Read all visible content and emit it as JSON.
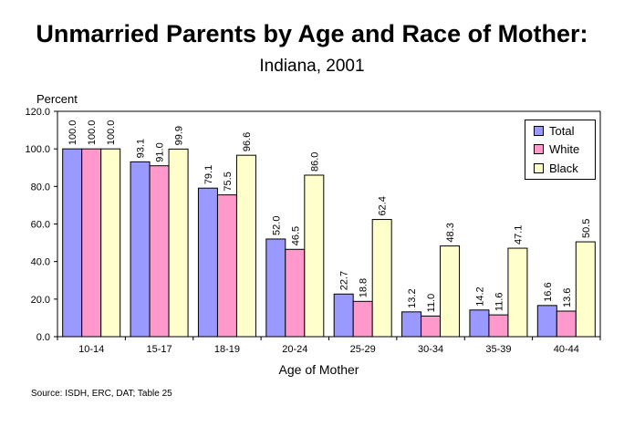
{
  "chart_data": {
    "type": "bar",
    "title": "Unmarried Parents by Age and Race of Mother:",
    "subtitle": "Indiana, 2001",
    "ylabel": "Percent",
    "xlabel": "Age of Mother",
    "ylim": [
      0,
      120
    ],
    "yticks": [
      "0.0",
      "20.0",
      "40.0",
      "60.0",
      "80.0",
      "100.0",
      "120.0"
    ],
    "categories": [
      "10-14",
      "15-17",
      "18-19",
      "20-24",
      "25-29",
      "30-34",
      "35-39",
      "40-44"
    ],
    "series": [
      {
        "name": "Total",
        "color": "#9999FF",
        "values": [
          100.0,
          93.1,
          79.1,
          52.0,
          22.7,
          13.2,
          14.2,
          16.6
        ]
      },
      {
        "name": "White",
        "color": "#FF99CC",
        "values": [
          100.0,
          91.0,
          75.5,
          46.5,
          18.8,
          11.0,
          11.6,
          13.6
        ]
      },
      {
        "name": "Black",
        "color": "#FFFFCC",
        "values": [
          100.0,
          99.9,
          96.6,
          86.0,
          62.4,
          48.3,
          47.1,
          50.5
        ]
      }
    ],
    "legend_position": "top-right",
    "grid": false,
    "source": "Source:  ISDH, ERC, DAT; Table 25"
  }
}
